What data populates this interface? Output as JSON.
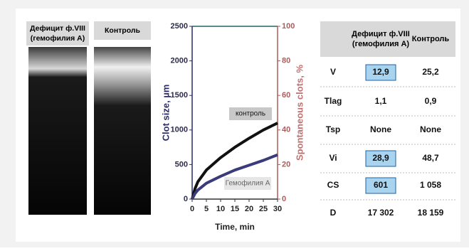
{
  "panels": [
    {
      "label": "Дефицит ф.VIII (гемофилия А)"
    },
    {
      "label": "Контроль"
    }
  ],
  "chart_data": {
    "type": "line",
    "y_label": "Clot size, µm",
    "y2_label": "Spontaneous clots, %",
    "x_label": "Time, min",
    "x": [
      0,
      1,
      2,
      5,
      10,
      15,
      20,
      25,
      30
    ],
    "series": [
      {
        "name": "контроль",
        "color": "#111111",
        "values": [
          0,
          150,
          250,
          420,
          600,
          750,
          880,
          1000,
          1100
        ]
      },
      {
        "name": "Гемофилия А",
        "color": "#3b3a7a",
        "values": [
          0,
          80,
          130,
          230,
          330,
          420,
          490,
          560,
          640
        ]
      }
    ],
    "xlim": [
      0,
      30
    ],
    "xticks": [
      0,
      5,
      10,
      15,
      20,
      25,
      30
    ],
    "ylim": [
      0,
      2500
    ],
    "yticks": [
      0,
      500,
      1000,
      1500,
      2000,
      2500
    ],
    "y2lim": [
      0,
      100
    ],
    "y2ticks": [
      0,
      20,
      40,
      60,
      80,
      100
    ]
  },
  "table": {
    "header": [
      "Дефицит ф.VIII (гемофилия А)",
      "Контроль"
    ],
    "rows": [
      [
        "V",
        "12,9",
        "25,2"
      ],
      [
        "Tlag",
        "1,1",
        "0,9"
      ],
      [
        "Tsp",
        "None",
        "None"
      ],
      [
        "Vi",
        "28,9",
        "48,7"
      ],
      [
        "CS",
        "601",
        "1 058"
      ],
      [
        "D",
        "17 302",
        "18 159"
      ]
    ],
    "highlighted_cells": [
      [
        0,
        1
      ],
      [
        3,
        1
      ],
      [
        4,
        1
      ]
    ]
  }
}
